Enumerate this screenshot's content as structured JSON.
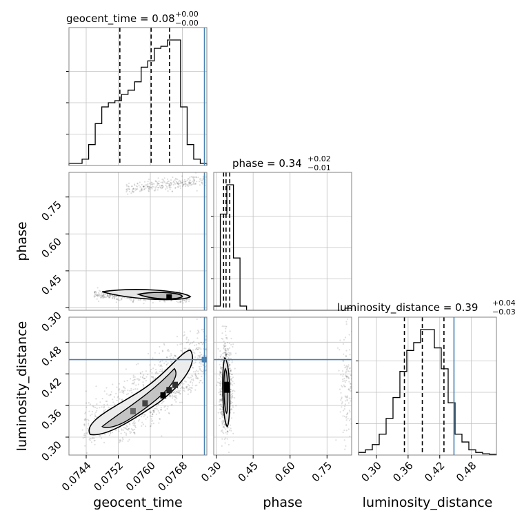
{
  "chart_data": {
    "type": "corner",
    "parameters": [
      "geocent_time",
      "phase",
      "luminosity_distance"
    ],
    "truths": {
      "geocent_time": 0.07735,
      "phase": null,
      "luminosity_distance": 0.447
    },
    "colors": {
      "truth": "#4682b4",
      "hist": "#000000",
      "grid": "#c0c0c0",
      "frame": "#808080"
    },
    "titles": [
      {
        "text": "geocent_time = 0.08",
        "plus": "+0.00",
        "minus": "−0.00"
      },
      {
        "text": "phase = 0.34",
        "plus": "+0.02",
        "minus": "−0.01"
      },
      {
        "text": "luminosity_distance = 0.39",
        "plus": "+0.04",
        "minus": "−0.03"
      }
    ],
    "axis_labels": {
      "x": [
        "geocent_time",
        "phase",
        "luminosity_distance"
      ],
      "y": [
        "phase",
        "luminosity_distance"
      ]
    },
    "ticks": {
      "geocent_time": [
        "0.0744",
        "0.0752",
        "0.0760",
        "0.0768"
      ],
      "phase": [
        "0.30",
        "0.45",
        "0.60",
        "0.75"
      ],
      "luminosity_distance": [
        "0.30",
        "0.36",
        "0.42",
        "0.48"
      ]
    },
    "ranges": {
      "geocent_time": [
        0.07397,
        0.07741
      ],
      "phase": [
        0.29,
        0.85
      ],
      "luminosity_distance": [
        0.266,
        0.5275
      ]
    },
    "quantiles": {
      "geocent_time": [
        0.07524,
        0.07602,
        0.07648
      ],
      "phase": [
        0.33,
        0.34,
        0.355
      ],
      "luminosity_distance": [
        0.353,
        0.387,
        0.428
      ]
    },
    "histograms": {
      "geocent_time": [
        1,
        1,
        3,
        10,
        20,
        28,
        30,
        31,
        34,
        36,
        40,
        47,
        50,
        56,
        57,
        60,
        60,
        28,
        10,
        3,
        1
      ],
      "phase": [
        2,
        46,
        60,
        25,
        2,
        0,
        0,
        0,
        0,
        0,
        0,
        0,
        0,
        0,
        0,
        0,
        0,
        0,
        0,
        0,
        1
      ],
      "luminosity_distance": [
        1,
        2,
        4,
        8,
        14,
        22,
        32,
        40,
        43,
        48,
        48,
        41,
        33,
        20,
        8,
        5,
        2,
        1,
        0.5,
        0.3
      ]
    }
  }
}
